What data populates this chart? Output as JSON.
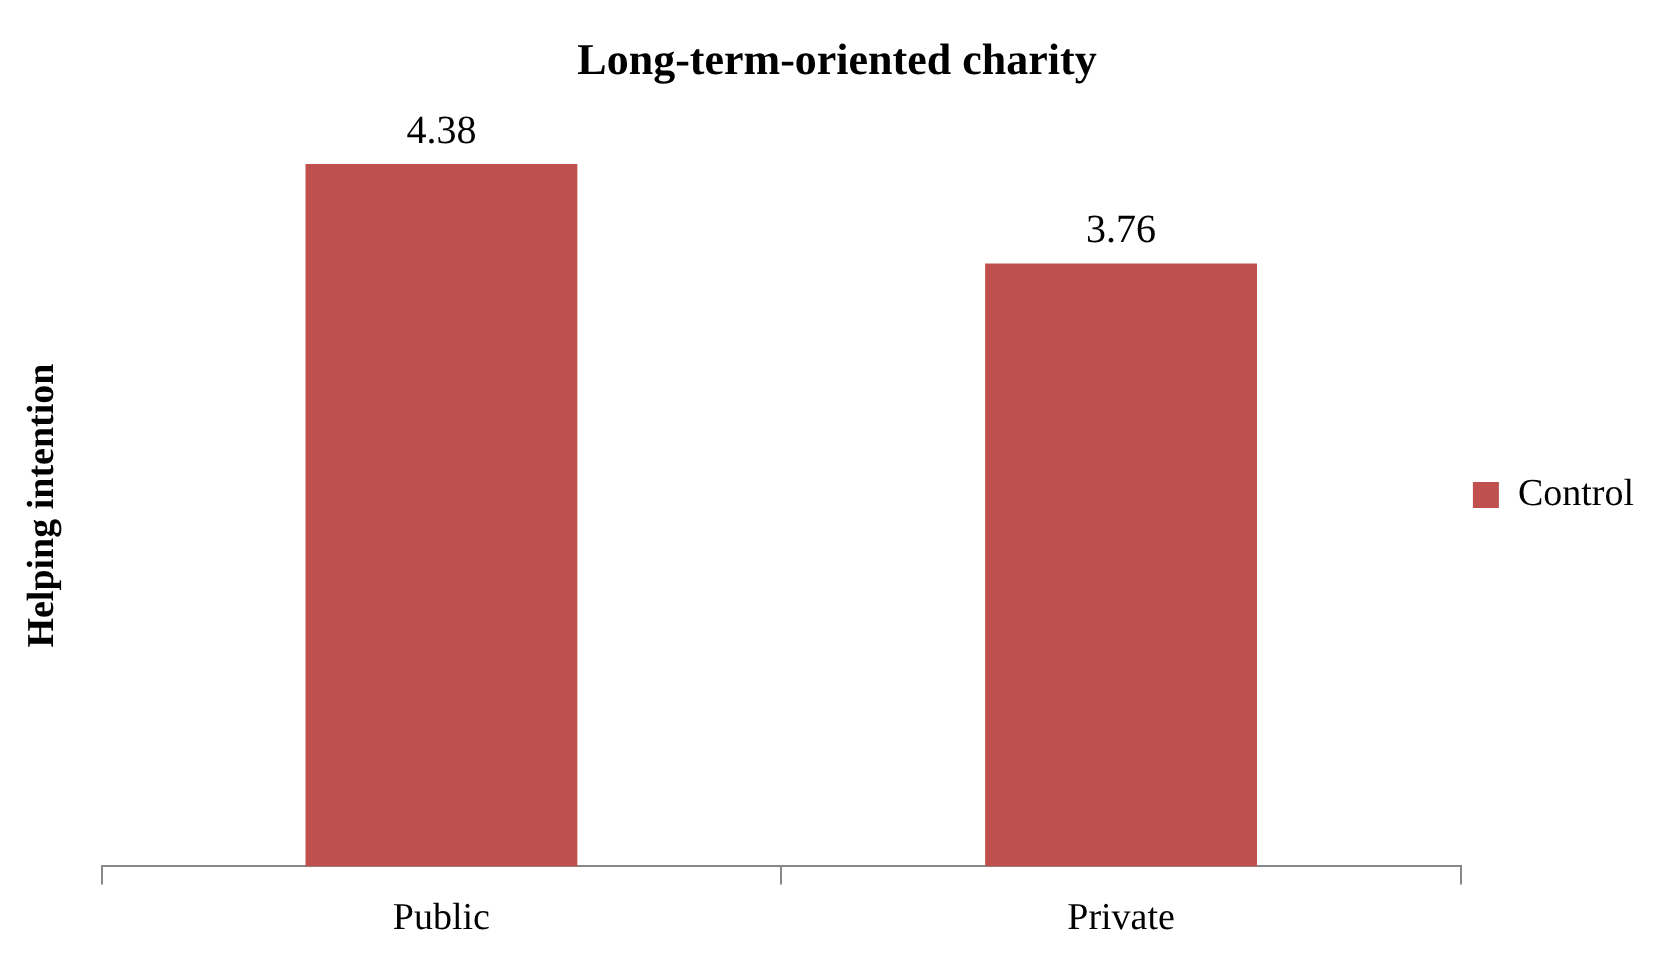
{
  "chart_data": {
    "type": "bar",
    "title": "Long-term-oriented charity",
    "ylabel": "Helping intention",
    "categories": [
      "Public",
      "Private"
    ],
    "series": [
      {
        "name": "Control",
        "color": "#c0504d",
        "values": [
          4.38,
          3.76
        ]
      }
    ],
    "tick_labels": "x",
    "data_labels": true,
    "legend": "right",
    "grid": false
  }
}
